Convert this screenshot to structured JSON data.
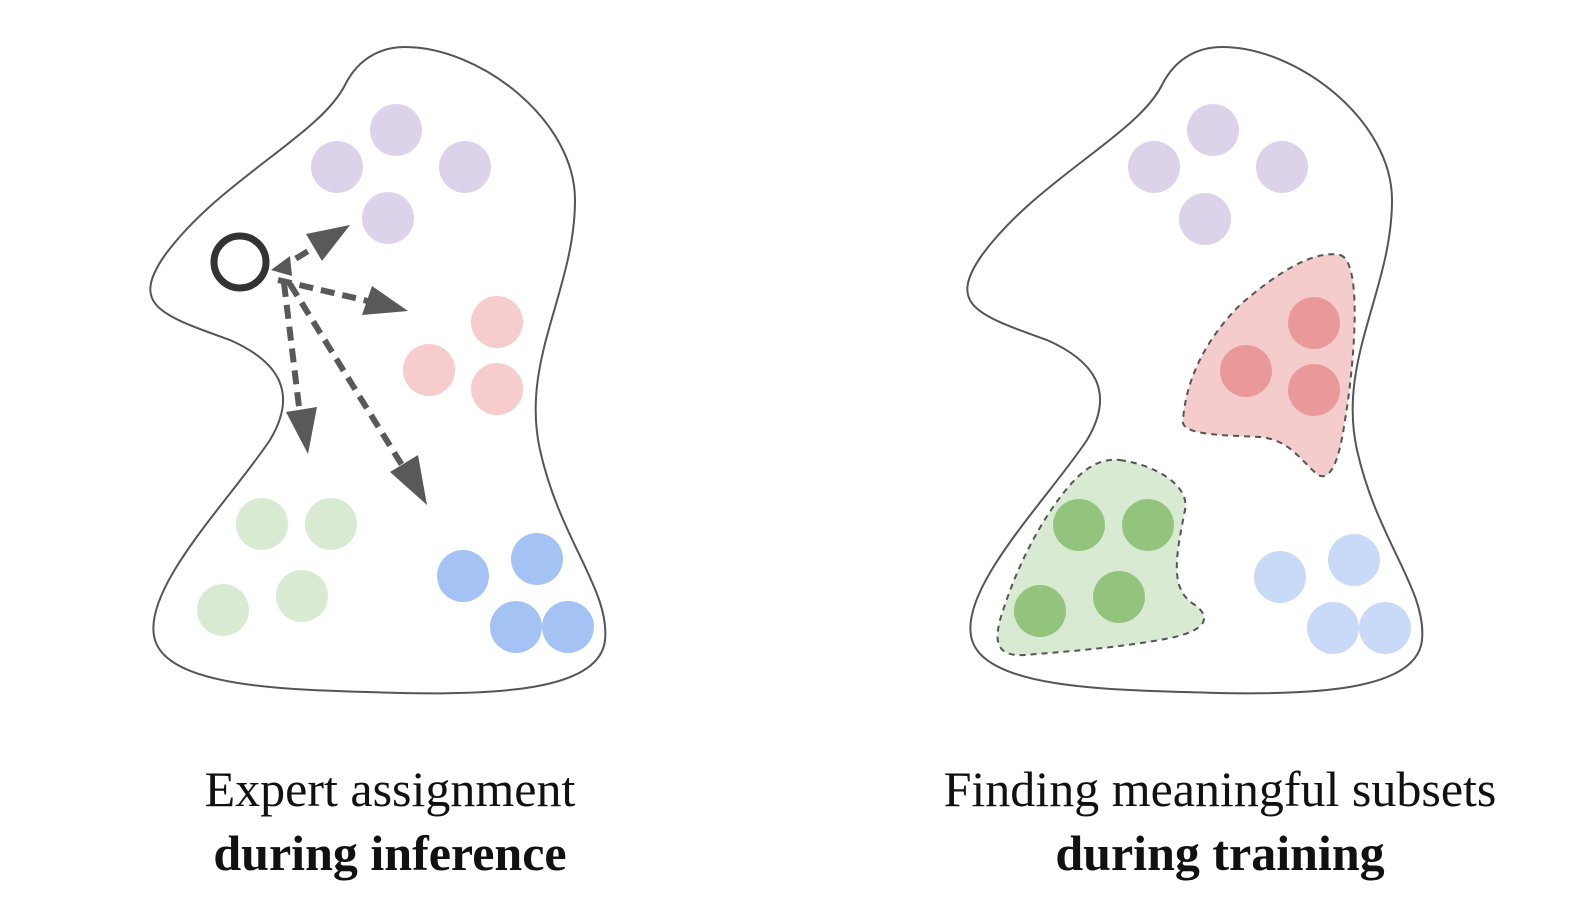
{
  "panels": [
    {
      "id": "inference",
      "caption_line1": "Expert assignment",
      "caption_line2": "during inference"
    },
    {
      "id": "training",
      "caption_line1": "Finding meaningful subsets",
      "caption_line2": "during training"
    }
  ],
  "colors": {
    "outline": "#555555",
    "purple": "#dcd3ea",
    "pink_light": "#f6cccc",
    "green_light": "#d9ead3",
    "blue": "#a4c2f4",
    "blue_light": "#c9daf8",
    "red_strong": "#e99999",
    "red_region": "#f4cccc",
    "green_strong": "#93c47d",
    "green_region": "#d9ead3",
    "arrow": "#595959",
    "query_ring": "#333333"
  }
}
